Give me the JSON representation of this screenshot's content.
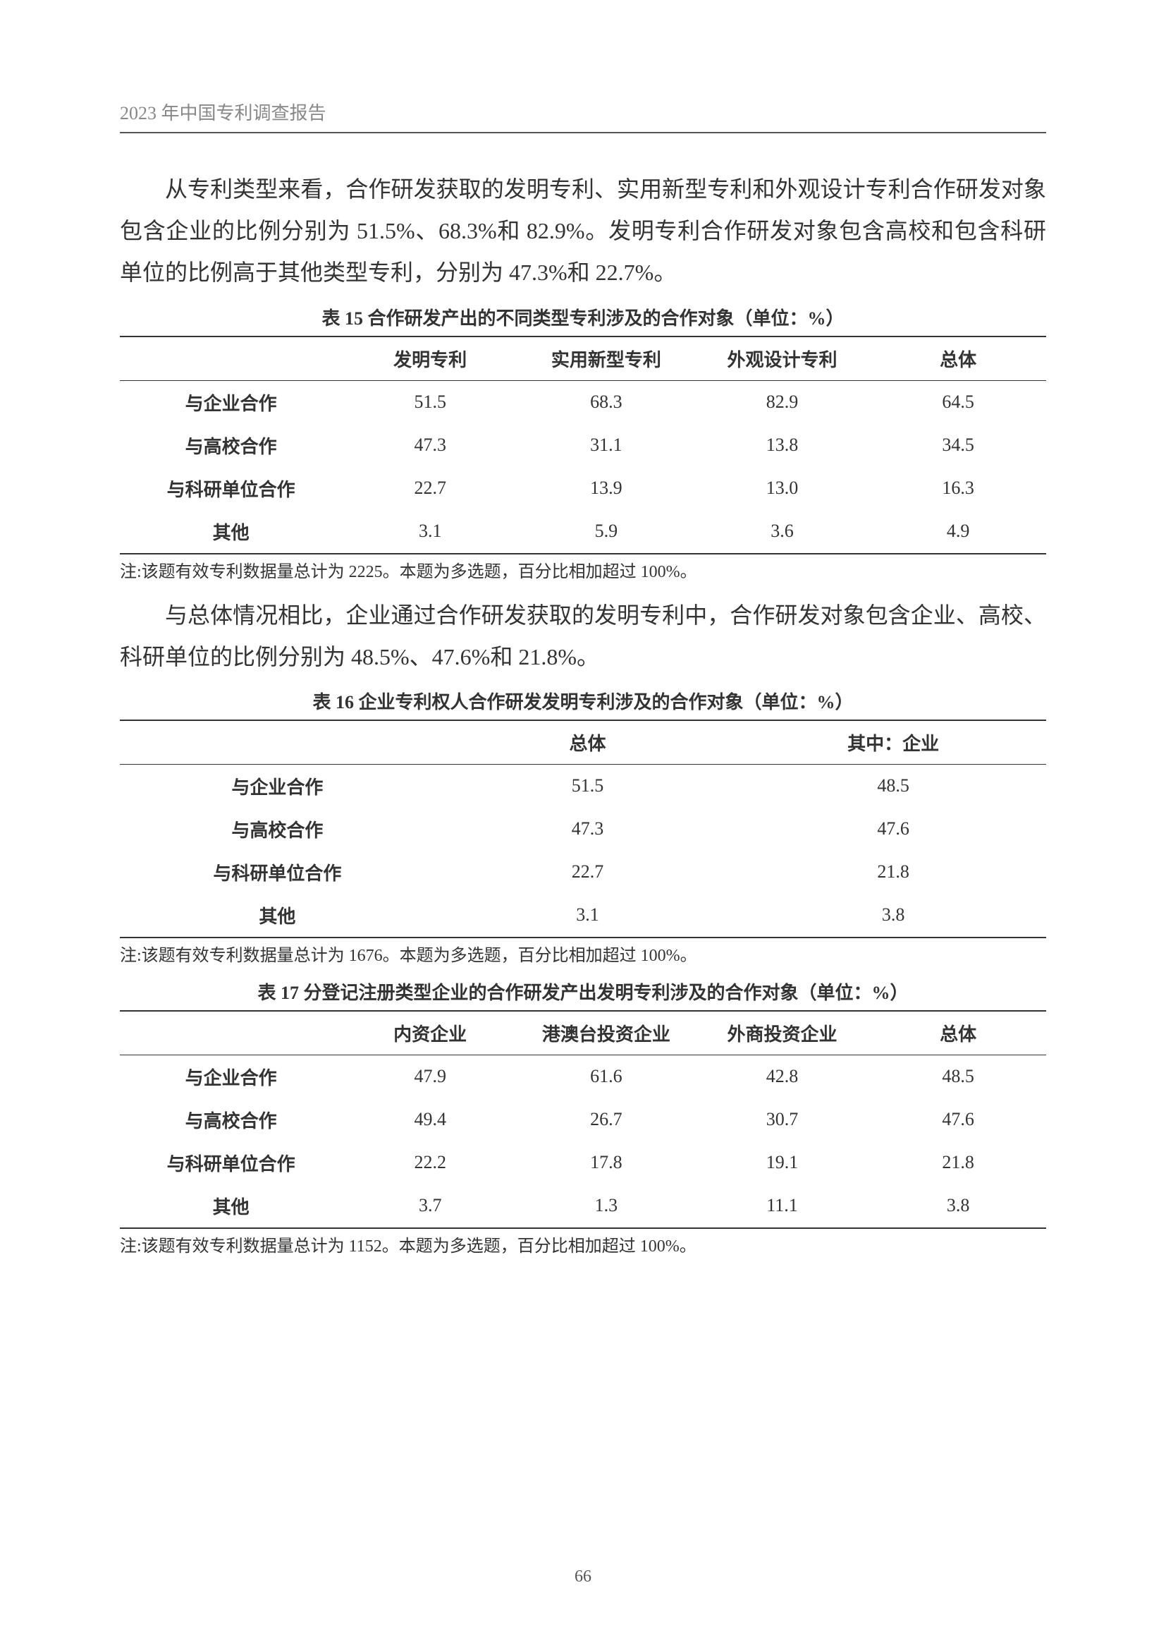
{
  "header": "2023 年中国专利调查报告",
  "page_number": "66",
  "para1": "从专利类型来看，合作研发获取的发明专利、实用新型专利和外观设计专利合作研发对象包含企业的比例分别为 51.5%、68.3%和 82.9%。发明专利合作研发对象包含高校和包含科研单位的比例高于其他类型专利，分别为 47.3%和 22.7%。",
  "table15": {
    "caption": "表 15  合作研发产出的不同类型专利涉及的合作对象（单位：%）",
    "columns": [
      "",
      "发明专利",
      "实用新型专利",
      "外观设计专利",
      "总体"
    ],
    "rows": [
      [
        "与企业合作",
        "51.5",
        "68.3",
        "82.9",
        "64.5"
      ],
      [
        "与高校合作",
        "47.3",
        "31.1",
        "13.8",
        "34.5"
      ],
      [
        "与科研单位合作",
        "22.7",
        "13.9",
        "13.0",
        "16.3"
      ],
      [
        "其他",
        "3.1",
        "5.9",
        "3.6",
        "4.9"
      ]
    ],
    "note": "注:该题有效专利数据量总计为 2225。本题为多选题，百分比相加超过 100%。",
    "col_widths": [
      "24%",
      "19%",
      "19%",
      "19%",
      "19%"
    ],
    "border_color": "#333333",
    "font_size_caption": 26,
    "font_size_body": 26
  },
  "para2": "与总体情况相比，企业通过合作研发获取的发明专利中，合作研发对象包含企业、高校、科研单位的比例分别为 48.5%、47.6%和 21.8%。",
  "table16": {
    "caption": "表 16  企业专利权人合作研发发明专利涉及的合作对象（单位：%）",
    "columns": [
      "",
      "总体",
      "其中：企业"
    ],
    "rows": [
      [
        "与企业合作",
        "51.5",
        "48.5"
      ],
      [
        "与高校合作",
        "47.3",
        "47.6"
      ],
      [
        "与科研单位合作",
        "22.7",
        "21.8"
      ],
      [
        "其他",
        "3.1",
        "3.8"
      ]
    ],
    "note": "注:该题有效专利数据量总计为 1676。本题为多选题，百分比相加超过 100%。",
    "col_widths": [
      "34%",
      "33%",
      "33%"
    ],
    "border_color": "#333333"
  },
  "table17": {
    "caption": "表 17  分登记注册类型企业的合作研发产出发明专利涉及的合作对象（单位：%）",
    "columns": [
      "",
      "内资企业",
      "港澳台投资企业",
      "外商投资企业",
      "总体"
    ],
    "rows": [
      [
        "与企业合作",
        "47.9",
        "61.6",
        "42.8",
        "48.5"
      ],
      [
        "与高校合作",
        "49.4",
        "26.7",
        "30.7",
        "47.6"
      ],
      [
        "与科研单位合作",
        "22.2",
        "17.8",
        "19.1",
        "21.8"
      ],
      [
        "其他",
        "3.7",
        "1.3",
        "11.1",
        "3.8"
      ]
    ],
    "note": "注:该题有效专利数据量总计为 1152。本题为多选题，百分比相加超过 100%。",
    "col_widths": [
      "24%",
      "19%",
      "19%",
      "19%",
      "19%"
    ],
    "border_color": "#333333"
  },
  "style": {
    "page_bg": "#ffffff",
    "text_color": "#333333",
    "header_color": "#888888",
    "para_fontsize": 32,
    "para_lineheight": 1.85,
    "note_fontsize": 24
  }
}
